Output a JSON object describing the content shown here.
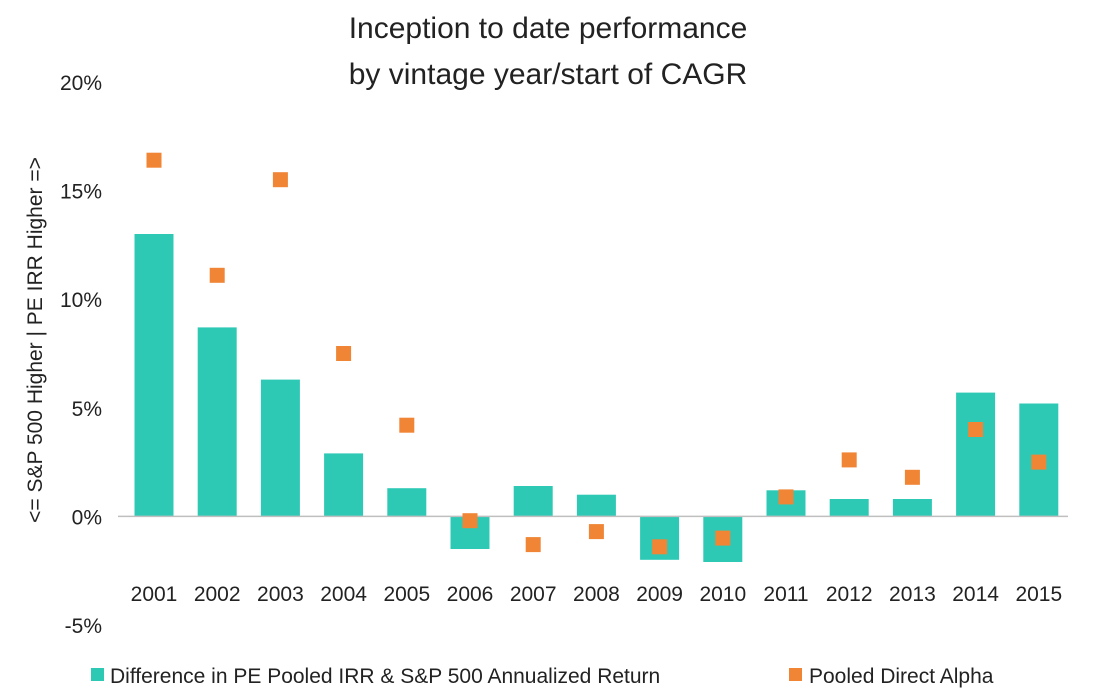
{
  "chart_data": {
    "type": "bar",
    "title_lines": [
      "Inception to date performance",
      "by vintage year/start of CAGR"
    ],
    "ylabel": "<=  S&P 500 Higher   |  PE IRR Higher  =>",
    "ylim": [
      -5,
      20
    ],
    "yticks": [
      20,
      15,
      10,
      5,
      0,
      -5
    ],
    "ytick_labels": [
      "20%",
      "15%",
      "10%",
      "5%",
      "0%",
      "-5%"
    ],
    "categories": [
      "2001",
      "2002",
      "2003",
      "2004",
      "2005",
      "2006",
      "2007",
      "2008",
      "2009",
      "2010",
      "2011",
      "2012",
      "2013",
      "2014",
      "2015"
    ],
    "series": [
      {
        "name": "Difference in PE Pooled IRR & S&P 500 Annualized Return",
        "kind": "bar",
        "color": "#2ec9b5",
        "values": [
          13.0,
          8.7,
          6.3,
          2.9,
          1.3,
          -1.5,
          1.4,
          1.0,
          -2.0,
          -2.1,
          1.2,
          0.8,
          0.8,
          5.7,
          5.2
        ]
      },
      {
        "name": "Pooled Direct Alpha",
        "kind": "scatter",
        "color": "#ef8535",
        "values": [
          16.4,
          11.1,
          15.5,
          7.5,
          4.2,
          -0.2,
          -1.3,
          -0.7,
          -1.4,
          -1.0,
          0.9,
          2.6,
          1.8,
          4.0,
          2.5
        ]
      }
    ],
    "axis_color": "#bfbfbf",
    "grid": false,
    "legend_position": "bottom"
  }
}
